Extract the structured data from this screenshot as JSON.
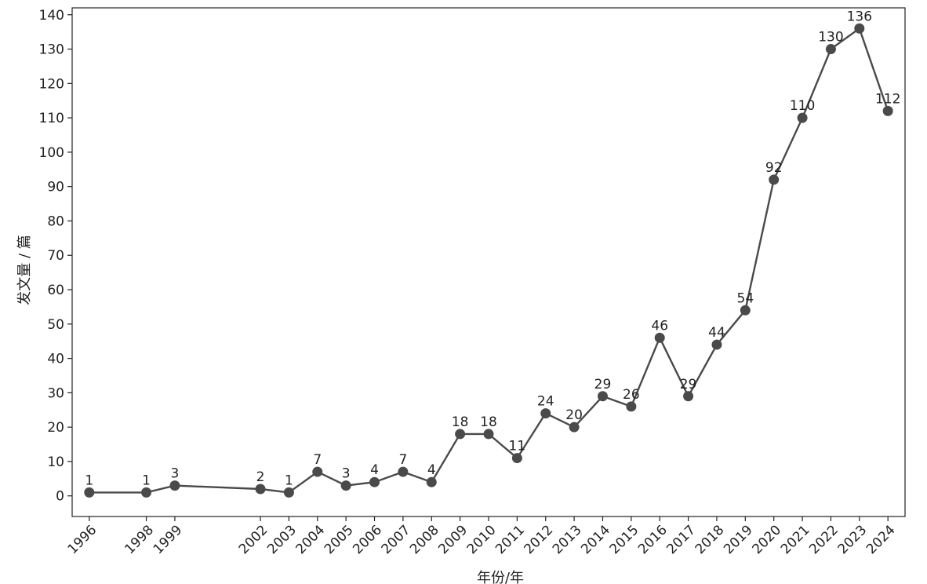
{
  "chart_data": {
    "type": "line",
    "x": [
      1996,
      1998,
      1999,
      2002,
      2003,
      2004,
      2005,
      2006,
      2007,
      2008,
      2009,
      2010,
      2011,
      2012,
      2013,
      2014,
      2015,
      2016,
      2017,
      2018,
      2019,
      2020,
      2021,
      2022,
      2023,
      2024
    ],
    "values": [
      1,
      1,
      3,
      2,
      1,
      7,
      3,
      4,
      7,
      4,
      18,
      18,
      11,
      24,
      20,
      29,
      26,
      46,
      29,
      44,
      54,
      92,
      110,
      130,
      136,
      112
    ],
    "xlabel": "年份/年",
    "ylabel": "发文量 / 篇",
    "ylim": [
      -6,
      142
    ],
    "yticks": [
      0,
      10,
      20,
      30,
      40,
      50,
      60,
      70,
      80,
      90,
      100,
      110,
      120,
      130,
      140
    ],
    "grid": false,
    "line_color": "#4a4a4a",
    "marker_color": "#4a4a4a"
  }
}
